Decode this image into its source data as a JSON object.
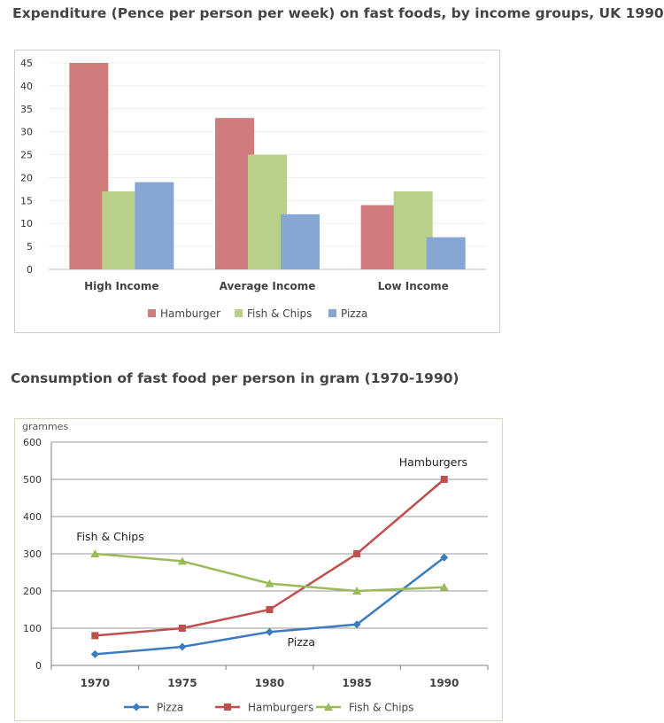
{
  "chart_data": [
    {
      "type": "bar",
      "title": "Expenditure (Pence per person per week) on fast foods, by income groups, UK 1990",
      "categories": [
        "High Income",
        "Average Income",
        "Low Income"
      ],
      "series": [
        {
          "name": "Hamburger",
          "color": "#d07c7c",
          "values": [
            45,
            33,
            14
          ]
        },
        {
          "name": "Fish & Chips",
          "color": "#b9d08a",
          "values": [
            17,
            25,
            17
          ]
        },
        {
          "name": "Pizza",
          "color": "#86a6d4",
          "values": [
            19,
            12,
            7
          ]
        }
      ],
      "ylim": [
        0,
        45
      ],
      "yticks": [
        "0",
        "5",
        "10",
        "15",
        "20",
        "25",
        "30",
        "35",
        "40",
        "45"
      ],
      "grid": true,
      "legend_position": "bottom"
    },
    {
      "type": "line",
      "title": "Consumption of fast food per person in gram (1970-1990)",
      "ylabel": "grammes",
      "x": [
        "1970",
        "1975",
        "1980",
        "1985",
        "1990"
      ],
      "series": [
        {
          "name": "Pizza",
          "color": "#3c7bbf",
          "marker": "diamond",
          "values": [
            30,
            50,
            90,
            110,
            290
          ]
        },
        {
          "name": "Hamburgers",
          "color": "#c0504d",
          "marker": "square",
          "values": [
            80,
            100,
            150,
            300,
            500
          ]
        },
        {
          "name": "Fish & Chips",
          "color": "#9bbb59",
          "marker": "triangle",
          "values": [
            300,
            280,
            220,
            200,
            210
          ]
        }
      ],
      "ylim": [
        0,
        600
      ],
      "yticks": [
        "0",
        "100",
        "200",
        "300",
        "400",
        "500",
        "600"
      ],
      "grid": true,
      "legend_position": "bottom",
      "annotations": [
        "Fish & Chips",
        "Hamburgers",
        "Pizza"
      ]
    }
  ]
}
